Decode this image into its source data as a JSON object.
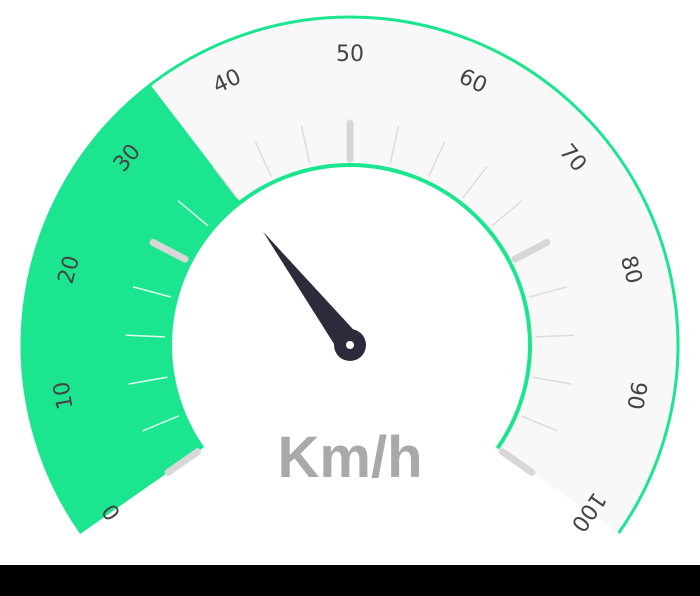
{
  "gauge": {
    "min": 0,
    "max": 100,
    "value": 35,
    "unit_label": "Km/h",
    "tick_labels": [
      "0",
      "10",
      "20",
      "30",
      "40",
      "50",
      "60",
      "70",
      "80",
      "90",
      "100"
    ],
    "colors": {
      "filled": "#1ce58f",
      "track": "#f8f8f8",
      "rim": "#1ce58f",
      "major_tick": "#d7d7d7",
      "minor_tick": "#dcdcdc",
      "label": "#444444",
      "unit_label": "#a9a9a9",
      "needle": "#2b2b3b",
      "hub_center": "#ffffff",
      "bottom_bar": "#000000"
    }
  }
}
